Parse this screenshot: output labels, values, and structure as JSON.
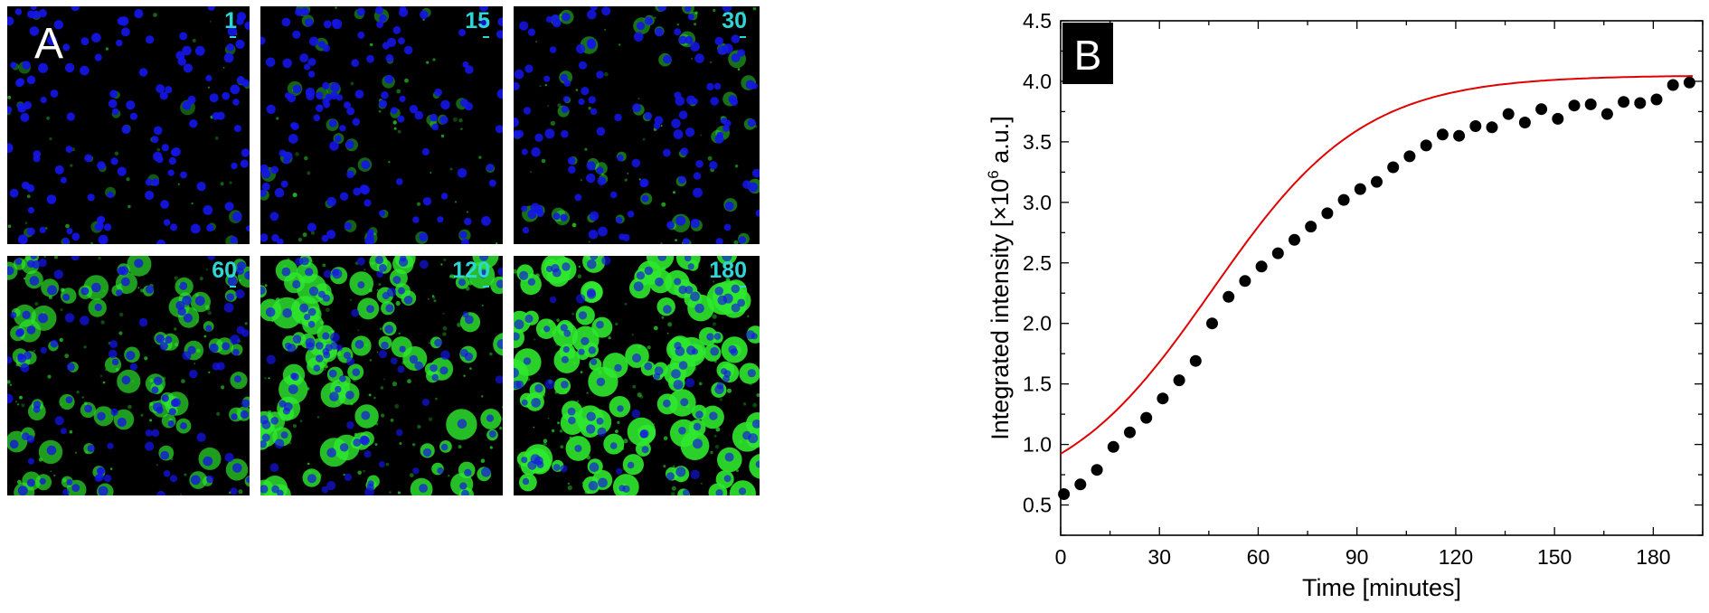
{
  "panel_a": {
    "letter": "A",
    "tiles": [
      {
        "time": "1",
        "intensity": 0.08
      },
      {
        "time": "15",
        "intensity": 0.15
      },
      {
        "time": "30",
        "intensity": 0.25
      },
      {
        "time": "60",
        "intensity": 0.6
      },
      {
        "time": "120",
        "intensity": 0.85
      },
      {
        "time": "180",
        "intensity": 1.0
      }
    ],
    "colors": {
      "nuclei": "#1414e6",
      "signal": "#2ee82e",
      "label": "#2fd6d6"
    }
  },
  "chart_data": {
    "type": "scatter",
    "panel_letter": "B",
    "xlabel": "Time [minutes]",
    "ylabel_prefix": "Integrated intensity [×10",
    "ylabel_sup": "6",
    "ylabel_suffix": " a.u.]",
    "xlim": [
      0,
      195
    ],
    "ylim": [
      0.25,
      4.5
    ],
    "xticks": [
      0,
      30,
      60,
      90,
      120,
      150,
      180
    ],
    "xtick_labels": [
      "0",
      "30",
      "60",
      "90",
      "120",
      "150",
      "180"
    ],
    "yticks": [
      0.5,
      1.0,
      1.5,
      2.0,
      2.5,
      3.0,
      3.5,
      4.0,
      4.5
    ],
    "ytick_labels": [
      "0.5",
      "1.0",
      "1.5",
      "2.0",
      "2.5",
      "3.0",
      "3.5",
      "4.0",
      "4.5"
    ],
    "series": [
      {
        "marker": "circle",
        "color": "#000000",
        "x": [
          1,
          6,
          11,
          16,
          21,
          26,
          31,
          36,
          41,
          46,
          51,
          56,
          61,
          66,
          71,
          76,
          81,
          86,
          91,
          96,
          101,
          106,
          111,
          116,
          121,
          126,
          131,
          136,
          141,
          146,
          151,
          156,
          161,
          166,
          171,
          176,
          181,
          186,
          191
        ],
        "y": [
          0.59,
          0.67,
          0.79,
          0.98,
          1.1,
          1.22,
          1.38,
          1.53,
          1.69,
          2.0,
          2.22,
          2.35,
          2.47,
          2.58,
          2.69,
          2.8,
          2.91,
          3.02,
          3.11,
          3.17,
          3.29,
          3.38,
          3.47,
          3.56,
          3.55,
          3.63,
          3.62,
          3.73,
          3.66,
          3.77,
          3.69,
          3.8,
          3.81,
          3.73,
          3.83,
          3.82,
          3.85,
          3.97,
          3.99
        ]
      }
    ],
    "fit": {
      "type": "sigmoid",
      "color": "#e00000",
      "A1": 0.5,
      "A2": 4.05,
      "x0": 46,
      "dx": 23
    },
    "grid": false,
    "legend": "none"
  }
}
